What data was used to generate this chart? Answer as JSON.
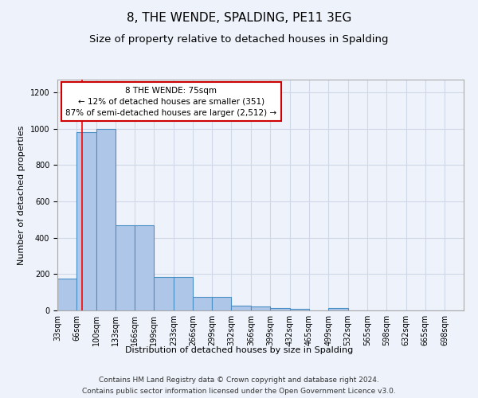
{
  "title": "8, THE WENDE, SPALDING, PE11 3EG",
  "subtitle": "Size of property relative to detached houses in Spalding",
  "xlabel": "Distribution of detached houses by size in Spalding",
  "ylabel": "Number of detached properties",
  "bins": [
    "33sqm",
    "66sqm",
    "100sqm",
    "133sqm",
    "166sqm",
    "199sqm",
    "233sqm",
    "266sqm",
    "299sqm",
    "332sqm",
    "366sqm",
    "399sqm",
    "432sqm",
    "465sqm",
    "499sqm",
    "532sqm",
    "565sqm",
    "598sqm",
    "632sqm",
    "665sqm",
    "698sqm"
  ],
  "bin_edges": [
    33,
    66,
    100,
    133,
    166,
    199,
    233,
    266,
    299,
    332,
    366,
    399,
    432,
    465,
    499,
    532,
    565,
    598,
    632,
    665,
    698,
    731
  ],
  "values": [
    175,
    980,
    1000,
    470,
    470,
    185,
    185,
    75,
    75,
    25,
    20,
    15,
    10,
    0,
    12,
    0,
    0,
    0,
    0,
    0,
    0
  ],
  "bar_color": "#aec6e8",
  "bar_edge_color": "#4a90c4",
  "bar_edge_width": 0.8,
  "grid_color": "#d0d8e8",
  "bg_color": "#eef2fb",
  "red_line_x": 75,
  "annotation_text": "8 THE WENDE: 75sqm\n← 12% of detached houses are smaller (351)\n87% of semi-detached houses are larger (2,512) →",
  "annotation_box_color": "#ffffff",
  "annotation_box_edge": "#cc0000",
  "ylim": [
    0,
    1270
  ],
  "yticks": [
    0,
    200,
    400,
    600,
    800,
    1000,
    1200
  ],
  "footer_line1": "Contains HM Land Registry data © Crown copyright and database right 2024.",
  "footer_line2": "Contains public sector information licensed under the Open Government Licence v3.0.",
  "title_fontsize": 11,
  "subtitle_fontsize": 9.5,
  "axis_label_fontsize": 8,
  "tick_fontsize": 7,
  "annotation_fontsize": 7.5,
  "footer_fontsize": 6.5
}
